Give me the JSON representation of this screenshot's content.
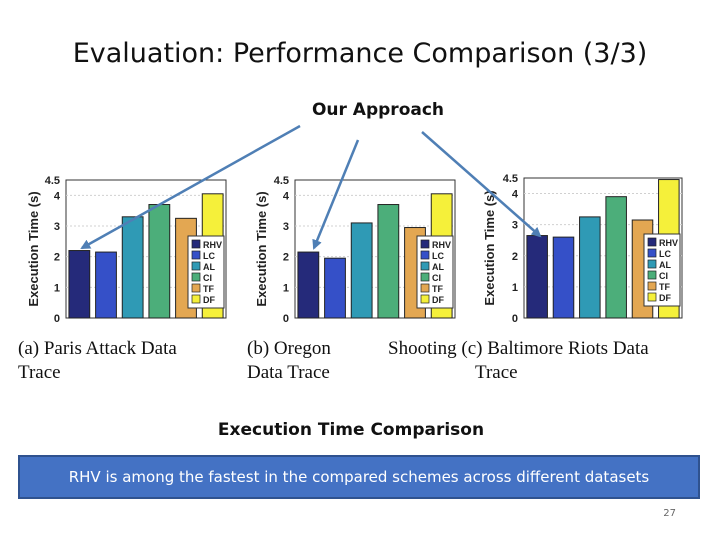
{
  "slide": {
    "title": "Evaluation: Performance Comparison (3/3)",
    "approach_label": "Our Approach",
    "figure_label": "Execution Time Comparison",
    "summary": "RHV is among the fastest in the compared schemes across different datasets",
    "page_number": "27",
    "caption": {
      "a_line1": "(a)  Paris   Attack   Data",
      "a_line2": "Trace",
      "b_line1": "(b)   Oregon",
      "b_line2": "Data Trace",
      "c_line1": "Shooting (c) Baltimore Riots Data",
      "c_line2": "Trace"
    }
  },
  "colors": {
    "RHV": "#252a7a",
    "LC": "#3550c8",
    "AL": "#2f9ab5",
    "CI": "#4cae7a",
    "TF": "#e3a752",
    "DF": "#f5f03a",
    "banner": "#4472c4",
    "arrow": "#4f7fb5"
  },
  "chart_data": [
    {
      "type": "bar",
      "categories": [
        "RHV",
        "LC",
        "AL",
        "CI",
        "TF",
        "DF"
      ],
      "values": [
        2.2,
        2.15,
        3.3,
        3.7,
        3.25,
        4.05
      ],
      "ylabel": "Execution Time (s)",
      "ylim": [
        0,
        4.5
      ],
      "yticks": [
        "0",
        "1",
        "2",
        "3",
        "4",
        "4.5"
      ],
      "legend": [
        "RHV",
        "LC",
        "AL",
        "CI",
        "TF",
        "DF"
      ],
      "legend_position": "right"
    },
    {
      "type": "bar",
      "categories": [
        "RHV",
        "LC",
        "AL",
        "CI",
        "TF",
        "DF"
      ],
      "values": [
        2.15,
        1.95,
        3.1,
        3.7,
        2.95,
        4.05
      ],
      "ylabel": "Execution Time (s)",
      "ylim": [
        0,
        4.5
      ],
      "yticks": [
        "0",
        "1",
        "2",
        "3",
        "4",
        "4.5"
      ],
      "legend": [
        "RHV",
        "LC",
        "AL",
        "CI",
        "TF",
        "DF"
      ],
      "legend_position": "right"
    },
    {
      "type": "bar",
      "categories": [
        "RHV",
        "LC",
        "AL",
        "CI",
        "TF",
        "DF"
      ],
      "values": [
        2.65,
        2.6,
        3.25,
        3.9,
        3.15,
        4.45
      ],
      "ylabel": "Execution Time (s)",
      "ylim": [
        0,
        4.5
      ],
      "yticks": [
        "0",
        "1",
        "2",
        "3",
        "4",
        "4.5"
      ],
      "legend": [
        "RHV",
        "LC",
        "AL",
        "CI",
        "TF",
        "DF"
      ],
      "legend_position": "right"
    }
  ]
}
